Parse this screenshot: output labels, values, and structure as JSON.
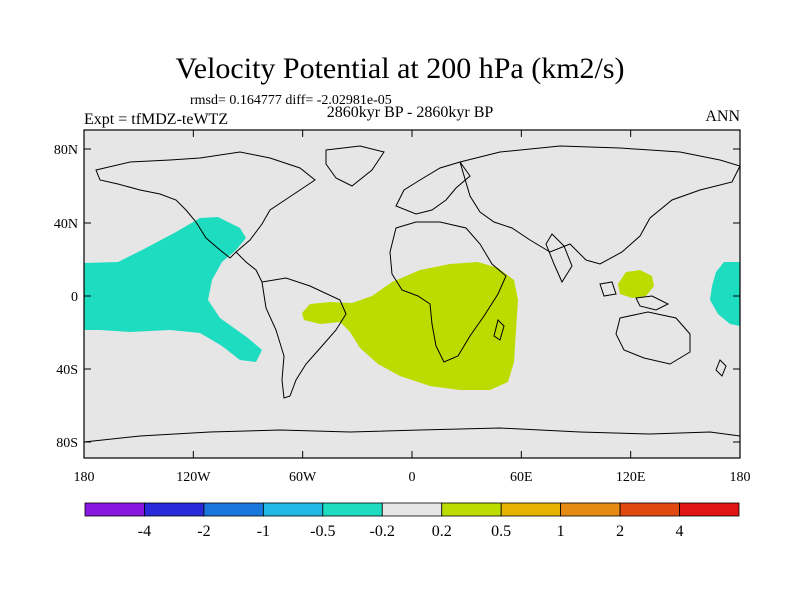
{
  "title": "Velocity Potential at 200 hPa (km2/s)",
  "stats": "rmsd= 0.164777 diff= -2.02981e-05",
  "experiment": "Expt = tfMDZ-teWTZ",
  "period": "2860kyr BP - 2860kyr BP",
  "season": "ANN",
  "map": {
    "background_color": "#e6e6e6",
    "lat_ticks": [
      "80N",
      "40N",
      "0",
      "40S",
      "80S"
    ],
    "lon_ticks": [
      "180",
      "120W",
      "60W",
      "0",
      "60E",
      "120E",
      "180"
    ]
  },
  "colorbar": {
    "colors": [
      "#8a17e0",
      "#2a2ad8",
      "#1a78dc",
      "#22b8e6",
      "#1edcc0",
      "#e6e6e6",
      "#bcdc00",
      "#e6b400",
      "#e68a14",
      "#e04a10",
      "#e01414"
    ],
    "labels": [
      "-4",
      "-2",
      "-1",
      "-0.5",
      "-0.2",
      "0.2",
      "0.5",
      "1",
      "2",
      "4"
    ]
  }
}
